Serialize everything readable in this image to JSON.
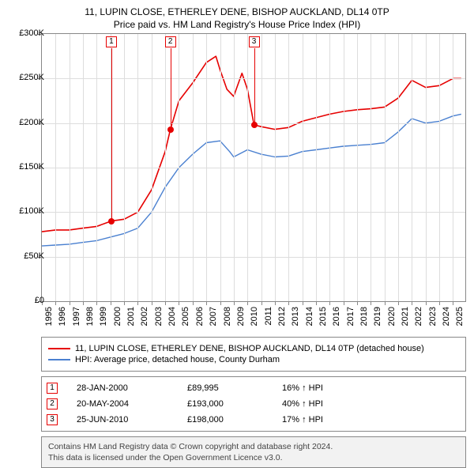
{
  "title_line1": "11, LUPIN CLOSE, ETHERLEY DENE, BISHOP AUCKLAND, DL14 0TP",
  "title_line2": "Price paid vs. HM Land Registry's House Price Index (HPI)",
  "chart": {
    "type": "line",
    "background_color": "#ffffff",
    "grid_color": "#dddddd",
    "axis_color": "#888888",
    "text_color": "#000000",
    "label_fontsize": 11,
    "xlim": [
      1995,
      2025.9
    ],
    "ylim": [
      0,
      300000
    ],
    "ytick_step": 50000,
    "yticks": [
      {
        "v": 0,
        "label": "£0"
      },
      {
        "v": 50000,
        "label": "£50K"
      },
      {
        "v": 100000,
        "label": "£100K"
      },
      {
        "v": 150000,
        "label": "£150K"
      },
      {
        "v": 200000,
        "label": "£200K"
      },
      {
        "v": 250000,
        "label": "£250K"
      },
      {
        "v": 300000,
        "label": "£300K"
      }
    ],
    "xticks": [
      1995,
      1996,
      1997,
      1998,
      1999,
      2000,
      2001,
      2002,
      2003,
      2004,
      2005,
      2006,
      2007,
      2008,
      2009,
      2010,
      2011,
      2012,
      2013,
      2014,
      2015,
      2016,
      2017,
      2018,
      2019,
      2020,
      2021,
      2022,
      2023,
      2024,
      2025
    ],
    "series": [
      {
        "id": "property",
        "name": "11, LUPIN CLOSE, ETHERLEY DENE, BISHOP AUCKLAND, DL14 0TP (detached house)",
        "color": "#e60000",
        "line_width": 1.6,
        "data": [
          [
            1995,
            78000
          ],
          [
            1996,
            80000
          ],
          [
            1997,
            80000
          ],
          [
            1998,
            82000
          ],
          [
            1999,
            84000
          ],
          [
            2000.07,
            89995
          ],
          [
            2001,
            92000
          ],
          [
            2002,
            100000
          ],
          [
            2003,
            125000
          ],
          [
            2004,
            168000
          ],
          [
            2004.38,
            193000
          ],
          [
            2005,
            225000
          ],
          [
            2006,
            245000
          ],
          [
            2007,
            268000
          ],
          [
            2007.7,
            275000
          ],
          [
            2008,
            260000
          ],
          [
            2008.5,
            238000
          ],
          [
            2009,
            230000
          ],
          [
            2009.6,
            256000
          ],
          [
            2010,
            238000
          ],
          [
            2010.48,
            198000
          ],
          [
            2011,
            196000
          ],
          [
            2012,
            193000
          ],
          [
            2013,
            195000
          ],
          [
            2014,
            202000
          ],
          [
            2015,
            206000
          ],
          [
            2016,
            210000
          ],
          [
            2017,
            213000
          ],
          [
            2018,
            215000
          ],
          [
            2019,
            216000
          ],
          [
            2020,
            218000
          ],
          [
            2021,
            228000
          ],
          [
            2022,
            248000
          ],
          [
            2023,
            240000
          ],
          [
            2024,
            242000
          ],
          [
            2025,
            250000
          ],
          [
            2025.6,
            250000
          ]
        ]
      },
      {
        "id": "hpi",
        "name": "HPI: Average price, detached house, County Durham",
        "color": "#4a80d0",
        "line_width": 1.4,
        "data": [
          [
            1995,
            62000
          ],
          [
            1996,
            63000
          ],
          [
            1997,
            64000
          ],
          [
            1998,
            66000
          ],
          [
            1999,
            68000
          ],
          [
            2000,
            72000
          ],
          [
            2001,
            76000
          ],
          [
            2002,
            82000
          ],
          [
            2003,
            100000
          ],
          [
            2004,
            128000
          ],
          [
            2005,
            150000
          ],
          [
            2006,
            165000
          ],
          [
            2007,
            178000
          ],
          [
            2008,
            180000
          ],
          [
            2008.7,
            168000
          ],
          [
            2009,
            162000
          ],
          [
            2010,
            170000
          ],
          [
            2011,
            165000
          ],
          [
            2012,
            162000
          ],
          [
            2013,
            163000
          ],
          [
            2014,
            168000
          ],
          [
            2015,
            170000
          ],
          [
            2016,
            172000
          ],
          [
            2017,
            174000
          ],
          [
            2018,
            175000
          ],
          [
            2019,
            176000
          ],
          [
            2020,
            178000
          ],
          [
            2021,
            190000
          ],
          [
            2022,
            205000
          ],
          [
            2023,
            200000
          ],
          [
            2024,
            202000
          ],
          [
            2025,
            208000
          ],
          [
            2025.6,
            210000
          ]
        ]
      }
    ],
    "markers": [
      {
        "n": "1",
        "x": 2000.07,
        "y": 89995,
        "color": "#e60000",
        "date": "28-JAN-2000",
        "price": "£89,995",
        "hpi": "16% ↑ HPI"
      },
      {
        "n": "2",
        "x": 2004.38,
        "y": 193000,
        "color": "#e60000",
        "date": "20-MAY-2004",
        "price": "£193,000",
        "hpi": "40% ↑ HPI"
      },
      {
        "n": "3",
        "x": 2010.48,
        "y": 198000,
        "color": "#e60000",
        "date": "25-JUN-2010",
        "price": "£198,000",
        "hpi": "17% ↑ HPI"
      }
    ]
  },
  "attribution": {
    "line1": "Contains HM Land Registry data © Crown copyright and database right 2024.",
    "line2": "This data is licensed under the Open Government Licence v3.0."
  }
}
